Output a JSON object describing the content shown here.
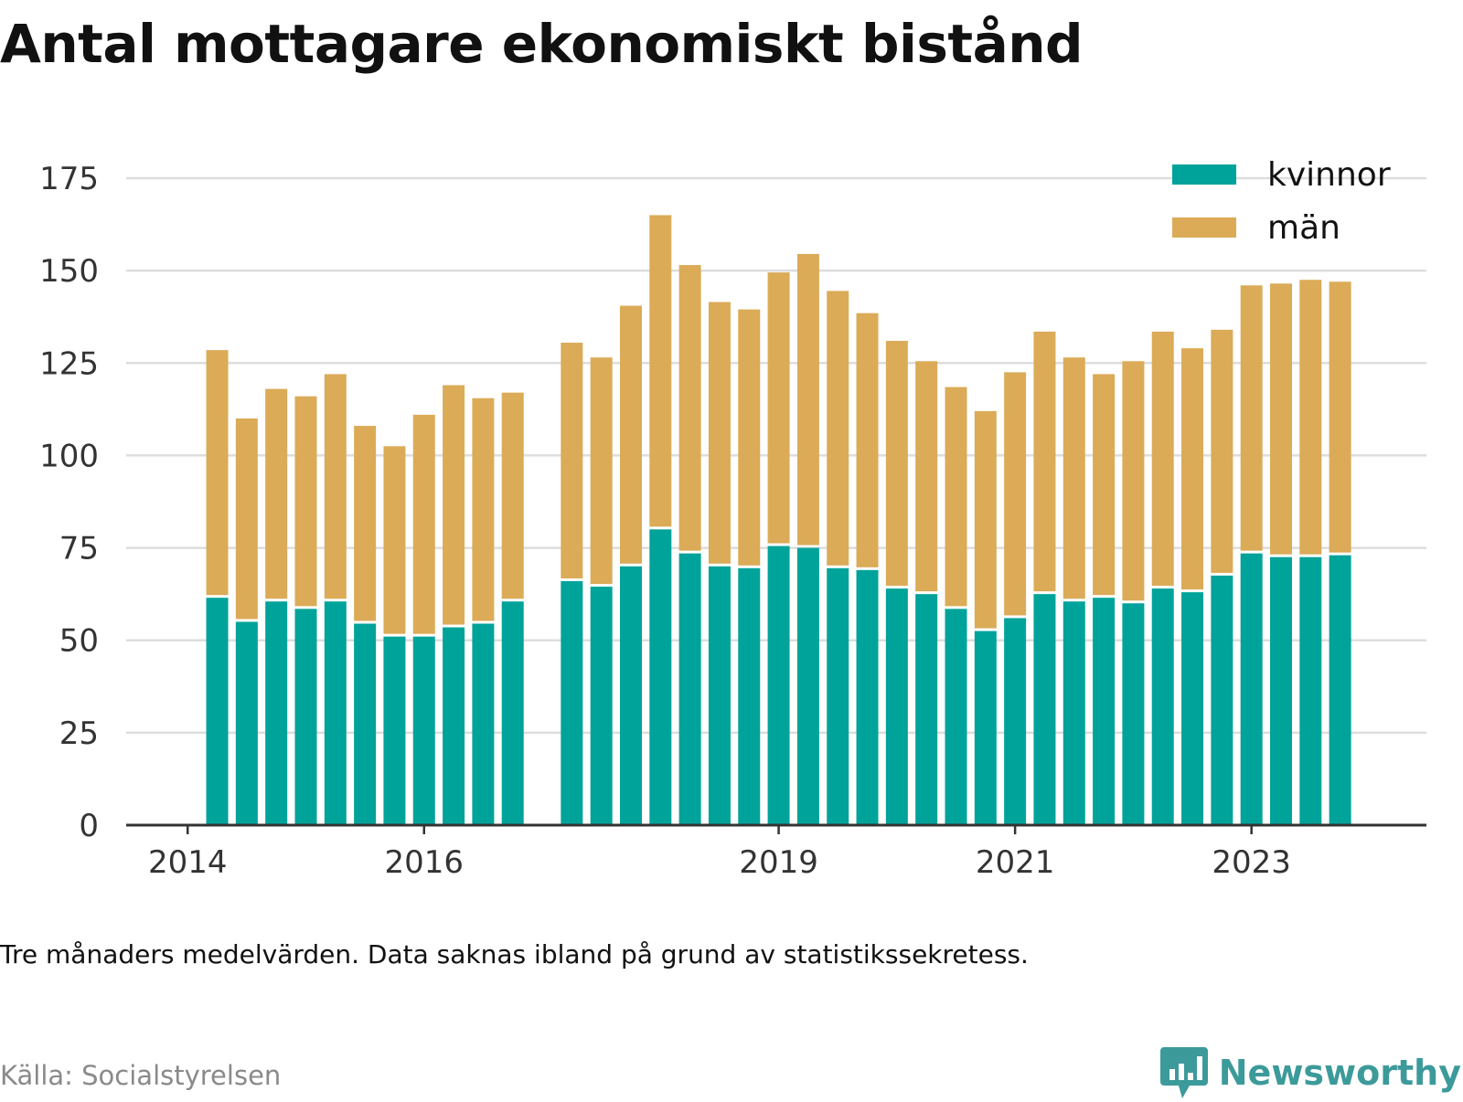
{
  "title": "Antal mottagare ekonomiskt bistånd",
  "note": "Tre månaders medelvärden. Data saknas ibland på grund av statistikssekretess.",
  "source": "Källa: Socialstyrelsen",
  "brand": "Newsworthy",
  "colors": {
    "kvinnor": "#00a39a",
    "man": "#dbab58",
    "grid": "#dddddd",
    "axis": "#333333",
    "brand": "#3d9a9a"
  },
  "chart_data": {
    "type": "bar",
    "stacked": true,
    "title": "Antal mottagare ekonomiskt bistånd",
    "ylim": [
      0,
      175
    ],
    "yticks": [
      0,
      25,
      50,
      75,
      100,
      125,
      150,
      175
    ],
    "xticks": [
      {
        "label": "2014",
        "x": 2014.0
      },
      {
        "label": "2016",
        "x": 2016.0
      },
      {
        "label": "2019",
        "x": 2019.0
      },
      {
        "label": "2021",
        "x": 2021.0
      },
      {
        "label": "2023",
        "x": 2023.0
      }
    ],
    "xlim": [
      2013.48,
      2024.48
    ],
    "legend_position": "top-right",
    "x": [
      2014.25,
      2014.5,
      2014.75,
      2015.0,
      2015.25,
      2015.5,
      2015.75,
      2016.0,
      2016.25,
      2016.5,
      2016.75,
      2017.25,
      2017.5,
      2017.75,
      2018.0,
      2018.25,
      2018.5,
      2018.75,
      2019.0,
      2019.25,
      2019.5,
      2019.75,
      2020.0,
      2020.25,
      2020.5,
      2020.75,
      2021.0,
      2021.25,
      2021.5,
      2021.75,
      2022.0,
      2022.25,
      2022.5,
      2022.75,
      2023.0,
      2023.25,
      2023.5,
      2023.75
    ],
    "series": [
      {
        "name": "kvinnor",
        "color": "#00a39a",
        "values": [
          61.5,
          55,
          60.5,
          58.5,
          60.5,
          54.5,
          51,
          51,
          53.5,
          54.5,
          60.5,
          66,
          64.5,
          70,
          80,
          73.5,
          70,
          69.5,
          75.5,
          75,
          69.5,
          69,
          64,
          62.5,
          58.5,
          52.5,
          56,
          62.5,
          60.5,
          61.5,
          60,
          64,
          63,
          67.5,
          73.5,
          72.5,
          72.5,
          73
        ]
      },
      {
        "name": "män",
        "color": "#dbab58",
        "values": [
          67,
          55,
          57.5,
          57.5,
          61.5,
          53.5,
          51.5,
          60,
          65.5,
          61,
          56.5,
          64.5,
          62,
          70.5,
          85,
          78,
          71.5,
          70,
          74,
          79.5,
          75,
          69.5,
          67,
          63,
          60,
          59.5,
          66.5,
          71,
          66,
          60.5,
          65.5,
          69.5,
          66,
          66.5,
          72.5,
          74,
          75,
          74
        ]
      }
    ]
  }
}
